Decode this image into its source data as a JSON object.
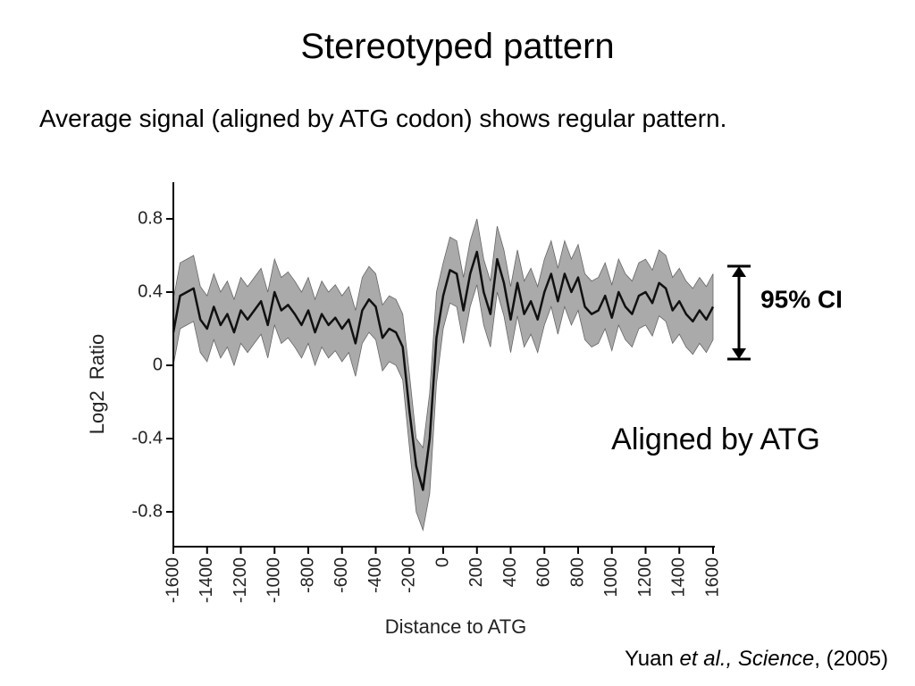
{
  "header": {
    "title": "Stereotyped pattern",
    "subtitle": "Average signal (aligned by ATG codon) shows regular pattern."
  },
  "citation": [
    "Yuan ",
    "et al., Science",
    ", (2005)"
  ],
  "chart_data": {
    "type": "line",
    "x_label": "Distance to ATG",
    "y_label": "Log2  Ratio",
    "annotations": [
      "95% CI",
      "Aligned by ATG"
    ],
    "x": [
      -1600,
      -1560,
      -1520,
      -1480,
      -1440,
      -1400,
      -1360,
      -1320,
      -1280,
      -1240,
      -1200,
      -1160,
      -1120,
      -1080,
      -1040,
      -1000,
      -960,
      -920,
      -880,
      -840,
      -800,
      -760,
      -720,
      -680,
      -640,
      -600,
      -560,
      -520,
      -480,
      -440,
      -400,
      -360,
      -320,
      -280,
      -240,
      -200,
      -160,
      -120,
      -80,
      -40,
      0,
      40,
      80,
      120,
      160,
      200,
      240,
      280,
      320,
      360,
      400,
      440,
      480,
      520,
      560,
      600,
      640,
      680,
      720,
      760,
      800,
      840,
      880,
      920,
      960,
      1000,
      1040,
      1080,
      1120,
      1160,
      1200,
      1240,
      1280,
      1320,
      1360,
      1400,
      1440,
      1480,
      1520,
      1560,
      1600
    ],
    "series": [
      {
        "color": "#111111",
        "band_color": "#aaaaaa",
        "values": [
          0.18,
          0.38,
          0.4,
          0.42,
          0.25,
          0.2,
          0.32,
          0.22,
          0.28,
          0.18,
          0.3,
          0.25,
          0.3,
          0.35,
          0.22,
          0.4,
          0.3,
          0.33,
          0.28,
          0.22,
          0.3,
          0.18,
          0.28,
          0.22,
          0.26,
          0.2,
          0.25,
          0.12,
          0.3,
          0.36,
          0.32,
          0.15,
          0.2,
          0.18,
          0.1,
          -0.25,
          -0.55,
          -0.68,
          -0.4,
          0.15,
          0.38,
          0.52,
          0.5,
          0.3,
          0.5,
          0.62,
          0.4,
          0.28,
          0.58,
          0.45,
          0.25,
          0.45,
          0.28,
          0.35,
          0.25,
          0.4,
          0.5,
          0.35,
          0.5,
          0.4,
          0.48,
          0.32,
          0.28,
          0.3,
          0.38,
          0.26,
          0.4,
          0.32,
          0.28,
          0.38,
          0.4,
          0.34,
          0.45,
          0.42,
          0.3,
          0.35,
          0.28,
          0.24,
          0.3,
          0.25,
          0.32
        ],
        "upper": [
          0.36,
          0.56,
          0.58,
          0.6,
          0.43,
          0.38,
          0.5,
          0.4,
          0.46,
          0.36,
          0.48,
          0.43,
          0.48,
          0.53,
          0.4,
          0.58,
          0.48,
          0.51,
          0.46,
          0.4,
          0.48,
          0.36,
          0.46,
          0.4,
          0.44,
          0.38,
          0.43,
          0.3,
          0.48,
          0.54,
          0.5,
          0.33,
          0.38,
          0.36,
          0.28,
          -0.05,
          -0.4,
          -0.45,
          -0.15,
          0.4,
          0.56,
          0.7,
          0.68,
          0.48,
          0.68,
          0.8,
          0.58,
          0.46,
          0.76,
          0.63,
          0.43,
          0.63,
          0.46,
          0.53,
          0.43,
          0.58,
          0.68,
          0.53,
          0.68,
          0.58,
          0.66,
          0.5,
          0.46,
          0.48,
          0.56,
          0.44,
          0.58,
          0.5,
          0.46,
          0.56,
          0.58,
          0.52,
          0.63,
          0.6,
          0.48,
          0.53,
          0.46,
          0.42,
          0.48,
          0.43,
          0.5
        ],
        "lower": [
          0.0,
          0.2,
          0.22,
          0.24,
          0.07,
          0.02,
          0.14,
          0.04,
          0.1,
          0.0,
          0.12,
          0.07,
          0.12,
          0.17,
          0.04,
          0.22,
          0.12,
          0.15,
          0.1,
          0.04,
          0.12,
          0.0,
          0.1,
          0.04,
          0.08,
          0.02,
          0.07,
          -0.06,
          0.12,
          0.18,
          0.14,
          -0.03,
          0.02,
          0.0,
          -0.08,
          -0.45,
          -0.8,
          -0.9,
          -0.7,
          -0.1,
          0.2,
          0.34,
          0.32,
          0.12,
          0.32,
          0.44,
          0.22,
          0.1,
          0.4,
          0.27,
          0.07,
          0.27,
          0.1,
          0.17,
          0.07,
          0.22,
          0.32,
          0.17,
          0.32,
          0.22,
          0.3,
          0.14,
          0.1,
          0.12,
          0.2,
          0.08,
          0.22,
          0.14,
          0.1,
          0.2,
          0.22,
          0.16,
          0.27,
          0.24,
          0.12,
          0.17,
          0.1,
          0.06,
          0.12,
          0.07,
          0.14
        ]
      }
    ],
    "xlim": [
      -1600,
      1600
    ],
    "xticks": [
      -1600,
      -1400,
      -1200,
      -1000,
      -800,
      -600,
      -400,
      -200,
      0,
      200,
      400,
      600,
      800,
      1000,
      1200,
      1400,
      1600
    ],
    "ylim": [
      -1,
      1
    ],
    "yticks": [
      0.8,
      0.4,
      0,
      -0.4,
      -0.8
    ]
  }
}
